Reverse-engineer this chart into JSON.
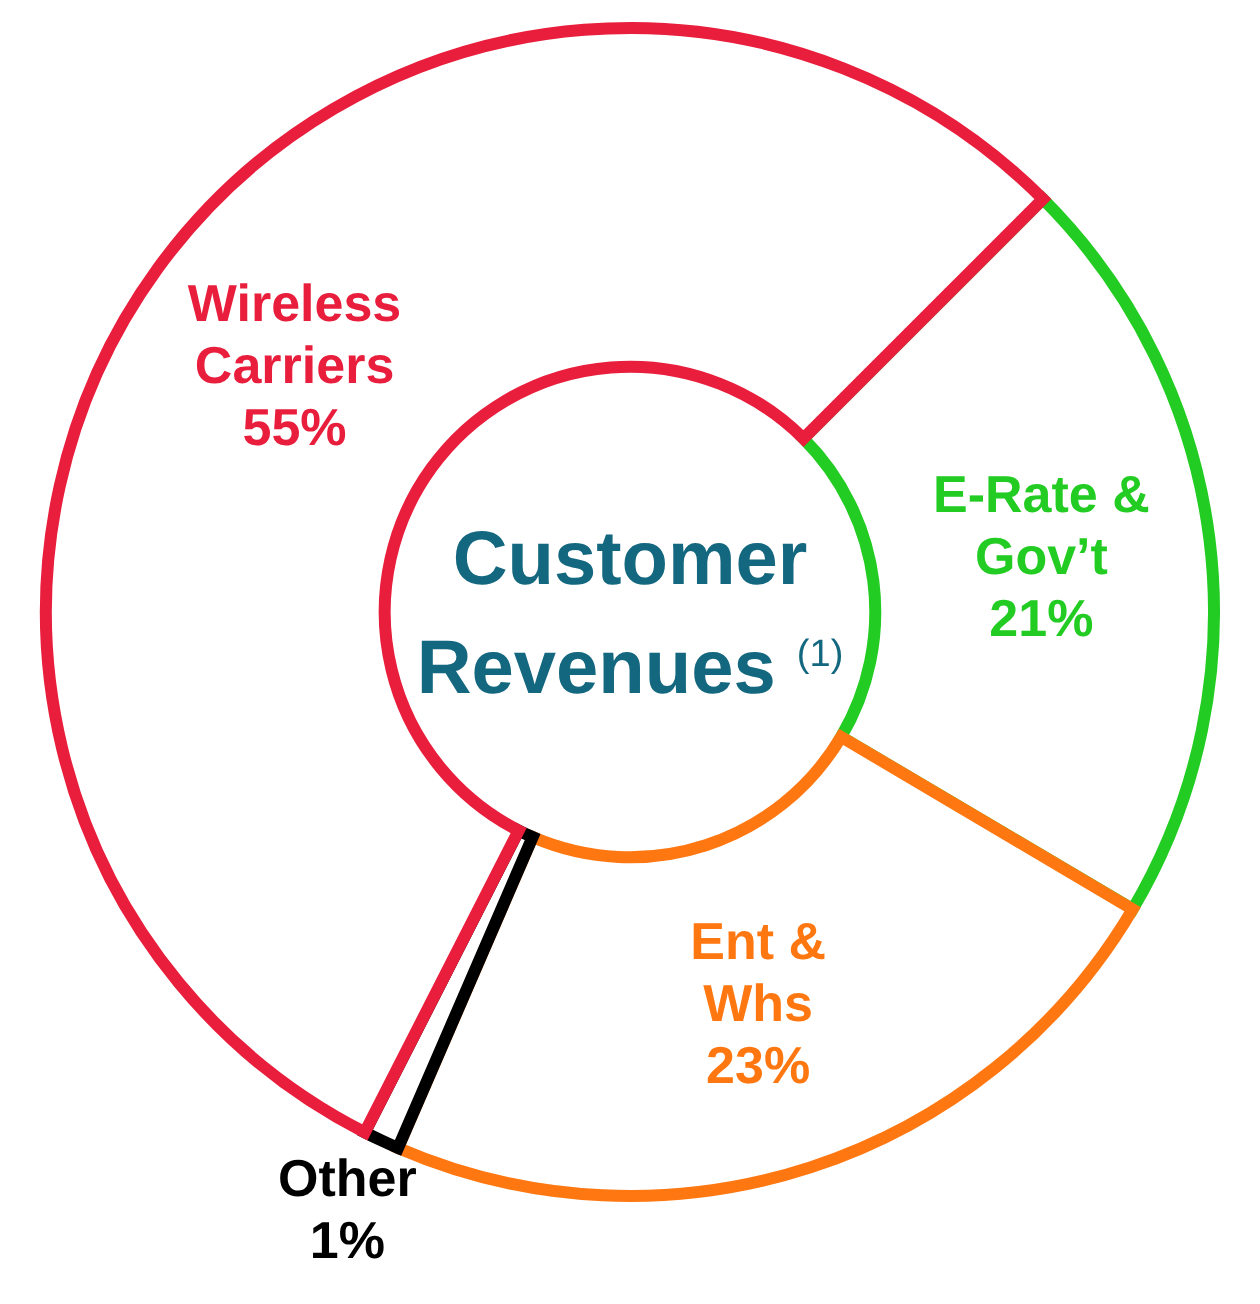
{
  "chart_data": {
    "type": "donut",
    "title": "Customer Revenues $^{(1)}$",
    "categories": [
      "E-Rate & Gov’t",
      "Ent & Whs",
      "Other",
      "Wireless Carriers"
    ],
    "values": [
      21,
      23,
      1,
      55
    ],
    "colors": [
      "#22cc22",
      "#ff7711",
      "#000000",
      "#e81e3c"
    ],
    "value_labels": [
      "21%",
      "23%",
      "1%",
      "55%"
    ],
    "legend": false
  }
}
